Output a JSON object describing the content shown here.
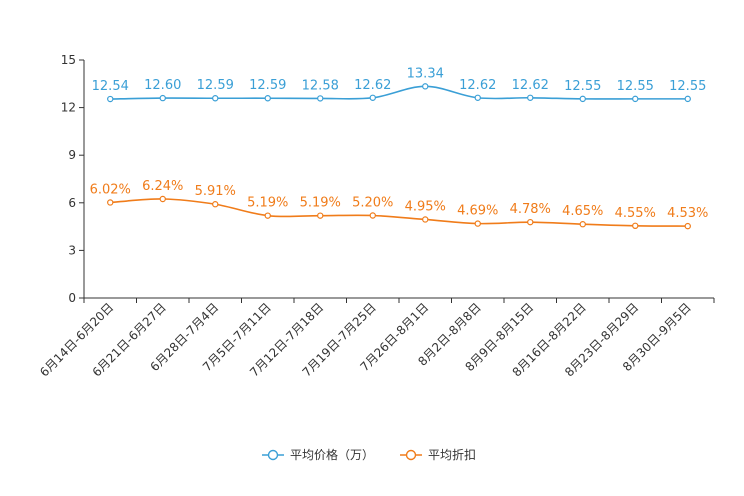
{
  "chart_data": {
    "type": "line",
    "title": "",
    "xlabel": "",
    "ylabel": "",
    "ylim": [
      0,
      15
    ],
    "yticks": [
      0,
      3,
      6,
      9,
      12,
      15
    ],
    "grid": false,
    "legend_position": "bottom-center",
    "categories": [
      "6月14日-6月20日",
      "6月21日-6月27日",
      "6月28日-7月4日",
      "7月5日-7月11日",
      "7月12日-7月18日",
      "7月19日-7月25日",
      "7月26日-8月1日",
      "8月2日-8月8日",
      "8月9日-8月15日",
      "8月16日-8月22日",
      "8月23日-8月29日",
      "8月30日-9月5日"
    ],
    "series": [
      {
        "name": "平均价格（万）",
        "color": "#3a9fd6",
        "values": [
          12.54,
          12.6,
          12.59,
          12.59,
          12.58,
          12.62,
          13.34,
          12.62,
          12.62,
          12.55,
          12.55,
          12.55
        ],
        "labels": [
          "12.54",
          "12.60",
          "12.59",
          "12.59",
          "12.58",
          "12.62",
          "13.34",
          "12.62",
          "12.62",
          "12.55",
          "12.55",
          "12.55"
        ]
      },
      {
        "name": "平均折扣",
        "color": "#f07c1a",
        "values": [
          6.02,
          6.24,
          5.91,
          5.19,
          5.19,
          5.2,
          4.95,
          4.69,
          4.78,
          4.65,
          4.55,
          4.53
        ],
        "labels": [
          "6.02%",
          "6.24%",
          "5.91%",
          "5.19%",
          "5.19%",
          "5.20%",
          "4.95%",
          "4.69%",
          "4.78%",
          "4.65%",
          "4.55%",
          "4.53%"
        ]
      }
    ]
  }
}
